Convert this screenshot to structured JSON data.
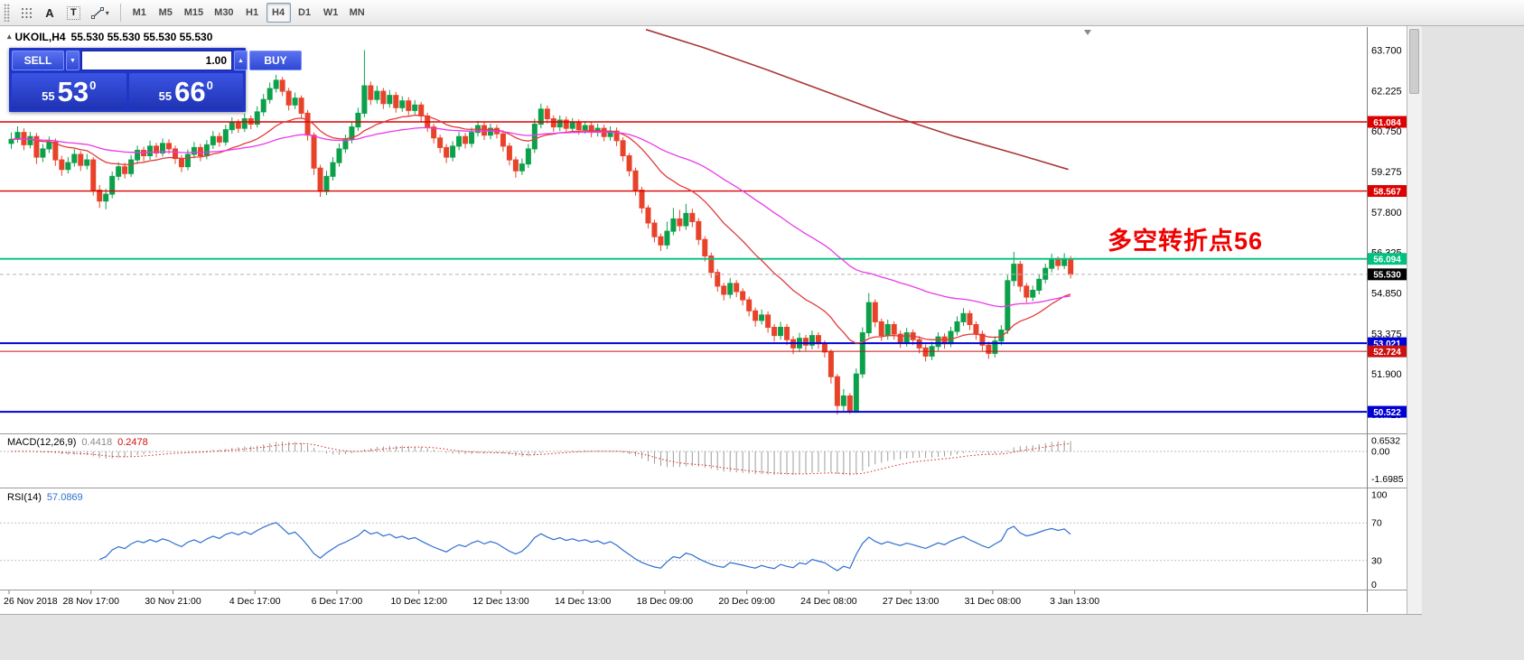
{
  "icons": {
    "caret_down": "▾",
    "spin_up": "▲",
    "spin_down": "▼",
    "collapse_arrow": "▴"
  },
  "app": {
    "toolbar": {
      "tools": [
        {
          "name": "grid-snap-tool"
        },
        {
          "name": "text-tool",
          "label": "A"
        },
        {
          "name": "textbox-tool",
          "label": "T"
        },
        {
          "name": "draw-tools"
        }
      ],
      "timeframes": [
        {
          "label": "M1"
        },
        {
          "label": "M5"
        },
        {
          "label": "M15"
        },
        {
          "label": "M30"
        },
        {
          "label": "H1"
        },
        {
          "label": "H4",
          "active": true
        },
        {
          "label": "D1"
        },
        {
          "label": "W1"
        },
        {
          "label": "MN"
        }
      ]
    }
  },
  "chart": {
    "symbol": "UKOIL,H4",
    "ohlc_line": "55.530 55.530 55.530 55.530",
    "trade_panel": {
      "sell_label": "SELL",
      "buy_label": "BUY",
      "volume": "1.00",
      "sell_price": {
        "prefix": "55",
        "big": "53",
        "sup": "0"
      },
      "buy_price": {
        "prefix": "55",
        "big": "66",
        "sup": "0"
      }
    },
    "annotation": {
      "text": "多空转折点56",
      "color": "#f10000"
    }
  },
  "price_axis": {
    "ticks": [
      "63.700",
      "62.225",
      "60.750",
      "59.275",
      "57.800",
      "56.325",
      "54.850",
      "53.375",
      "51.900",
      "50.425"
    ],
    "levels": [
      {
        "price": 61.084,
        "label": "61.084",
        "color": "#dd0000",
        "width": 1.4
      },
      {
        "price": 58.567,
        "label": "58.567",
        "color": "#dd0000",
        "width": 1.4
      },
      {
        "price": 56.094,
        "label": "56.094",
        "color": "#00c17e",
        "width": 1.8
      },
      {
        "price": 55.53,
        "label": "55.530",
        "color": "#b4b4b4",
        "badge": "#000000",
        "width": 1,
        "dash": "4,3",
        "is_current": true
      },
      {
        "price": 53.021,
        "label": "53.021",
        "color": "#0000d4",
        "width": 2
      },
      {
        "price": 52.724,
        "label": "52.724",
        "color": "#cc1111",
        "width": 1
      },
      {
        "price": 50.522,
        "label": "50.522",
        "color": "#0000d4",
        "width": 2
      }
    ]
  },
  "macd_panel": {
    "name": "MACD(12,26,9)",
    "value_main": "0.4418",
    "value_signal": "0.2478",
    "axis": [
      "0.6532",
      "0.00",
      "-1.6985"
    ]
  },
  "rsi_panel": {
    "name": "RSI(14)",
    "value": "57.0869",
    "axis": [
      "100",
      "70",
      "30",
      "0"
    ],
    "guide_levels": [
      70,
      30
    ]
  },
  "chart_data": {
    "type": "candlestick",
    "symbol": "UKOIL",
    "timeframe": "H4",
    "up_color": "#0ca04a",
    "down_color": "#e8432a",
    "time_labels": [
      "26 Nov 2018",
      "28 Nov 17:00",
      "30 Nov 21:00",
      "4 Dec 17:00",
      "6 Dec 17:00",
      "10 Dec 12:00",
      "12 Dec 13:00",
      "14 Dec 13:00",
      "18 Dec 09:00",
      "20 Dec 09:00",
      "24 Dec 08:00",
      "27 Dec 13:00",
      "31 Dec 08:00",
      "3 Jan 13:00"
    ],
    "candles_per_label": 13,
    "ohlc_format": [
      "open",
      "high",
      "low",
      "close"
    ],
    "candles": [
      [
        60.3,
        60.7,
        60.1,
        60.45
      ],
      [
        60.45,
        60.92,
        60.33,
        60.7
      ],
      [
        60.7,
        60.85,
        60.05,
        60.25
      ],
      [
        60.25,
        60.72,
        60.12,
        60.55
      ],
      [
        60.55,
        60.68,
        59.55,
        59.8
      ],
      [
        59.8,
        60.28,
        59.62,
        60.1
      ],
      [
        60.1,
        60.55,
        59.95,
        60.35
      ],
      [
        60.35,
        60.48,
        59.48,
        59.7
      ],
      [
        59.7,
        59.85,
        59.12,
        59.35
      ],
      [
        59.35,
        59.8,
        59.2,
        59.6
      ],
      [
        59.6,
        60.1,
        59.45,
        59.9
      ],
      [
        59.9,
        60.02,
        59.3,
        59.5
      ],
      [
        59.5,
        59.92,
        59.35,
        59.7
      ],
      [
        59.7,
        59.8,
        58.4,
        58.6
      ],
      [
        58.6,
        58.78,
        57.95,
        58.2
      ],
      [
        58.2,
        58.65,
        57.9,
        58.45
      ],
      [
        58.45,
        59.28,
        58.3,
        59.1
      ],
      [
        59.1,
        59.62,
        58.95,
        59.45
      ],
      [
        59.45,
        59.6,
        59.02,
        59.2
      ],
      [
        59.2,
        59.88,
        59.08,
        59.7
      ],
      [
        59.7,
        60.22,
        59.55,
        60.05
      ],
      [
        60.05,
        60.18,
        59.65,
        59.85
      ],
      [
        59.85,
        60.4,
        59.7,
        60.2
      ],
      [
        60.2,
        60.32,
        59.78,
        59.95
      ],
      [
        59.95,
        60.48,
        59.82,
        60.3
      ],
      [
        60.3,
        60.45,
        59.92,
        60.1
      ],
      [
        60.1,
        60.22,
        59.55,
        59.75
      ],
      [
        59.75,
        59.88,
        59.25,
        59.45
      ],
      [
        59.45,
        60.08,
        59.32,
        59.9
      ],
      [
        59.9,
        60.35,
        59.75,
        60.15
      ],
      [
        60.15,
        60.28,
        59.65,
        59.85
      ],
      [
        59.85,
        60.42,
        59.72,
        60.25
      ],
      [
        60.25,
        60.75,
        60.1,
        60.55
      ],
      [
        60.55,
        60.7,
        60.18,
        60.35
      ],
      [
        60.35,
        60.98,
        60.22,
        60.8
      ],
      [
        60.8,
        61.25,
        60.65,
        61.05
      ],
      [
        61.05,
        61.18,
        60.68,
        60.85
      ],
      [
        60.85,
        61.4,
        60.72,
        61.2
      ],
      [
        61.2,
        61.32,
        60.82,
        61.0
      ],
      [
        61.0,
        61.65,
        60.88,
        61.45
      ],
      [
        61.45,
        62.1,
        61.3,
        61.9
      ],
      [
        61.9,
        62.52,
        61.75,
        62.3
      ],
      [
        62.3,
        62.8,
        62.15,
        62.6
      ],
      [
        62.6,
        62.72,
        62.02,
        62.2
      ],
      [
        62.2,
        62.32,
        61.5,
        61.7
      ],
      [
        61.7,
        62.15,
        61.55,
        61.95
      ],
      [
        61.95,
        62.05,
        61.2,
        61.4
      ],
      [
        61.4,
        61.52,
        60.4,
        60.6
      ],
      [
        60.6,
        60.7,
        59.15,
        59.4
      ],
      [
        59.4,
        59.52,
        58.35,
        58.55
      ],
      [
        58.55,
        59.3,
        58.42,
        59.1
      ],
      [
        59.1,
        59.8,
        58.95,
        59.6
      ],
      [
        59.6,
        60.3,
        59.45,
        60.1
      ],
      [
        60.1,
        60.62,
        59.95,
        60.45
      ],
      [
        60.45,
        61.1,
        60.3,
        60.9
      ],
      [
        60.9,
        61.6,
        60.75,
        61.4
      ],
      [
        61.4,
        63.7,
        61.25,
        62.4
      ],
      [
        62.4,
        62.55,
        61.7,
        61.9
      ],
      [
        61.9,
        62.4,
        61.75,
        62.2
      ],
      [
        62.2,
        62.32,
        61.55,
        61.75
      ],
      [
        61.75,
        62.25,
        61.6,
        62.05
      ],
      [
        62.05,
        62.18,
        61.42,
        61.6
      ],
      [
        61.6,
        62.02,
        61.45,
        61.85
      ],
      [
        61.85,
        61.98,
        61.32,
        61.5
      ],
      [
        61.5,
        61.88,
        61.35,
        61.7
      ],
      [
        61.7,
        61.82,
        61.1,
        61.3
      ],
      [
        61.3,
        61.42,
        60.72,
        60.9
      ],
      [
        60.9,
        61.02,
        60.3,
        60.5
      ],
      [
        60.5,
        60.62,
        59.95,
        60.15
      ],
      [
        60.15,
        60.28,
        59.58,
        59.8
      ],
      [
        59.8,
        60.38,
        59.65,
        60.2
      ],
      [
        60.2,
        60.72,
        60.05,
        60.55
      ],
      [
        60.55,
        60.68,
        60.12,
        60.3
      ],
      [
        60.3,
        60.88,
        60.15,
        60.7
      ],
      [
        60.7,
        61.12,
        60.55,
        60.95
      ],
      [
        60.95,
        61.08,
        60.42,
        60.6
      ],
      [
        60.6,
        61.02,
        60.45,
        60.85
      ],
      [
        60.85,
        60.98,
        60.48,
        60.65
      ],
      [
        60.65,
        60.78,
        60.0,
        60.2
      ],
      [
        60.2,
        60.32,
        59.5,
        59.7
      ],
      [
        59.7,
        59.82,
        59.05,
        59.3
      ],
      [
        59.3,
        59.75,
        59.15,
        59.55
      ],
      [
        59.55,
        60.28,
        59.4,
        60.1
      ],
      [
        60.1,
        61.2,
        59.95,
        61.0
      ],
      [
        61.0,
        61.75,
        60.85,
        61.55
      ],
      [
        61.55,
        61.68,
        61.02,
        61.2
      ],
      [
        61.2,
        61.32,
        60.72,
        60.9
      ],
      [
        60.9,
        61.32,
        60.75,
        61.15
      ],
      [
        61.15,
        61.28,
        60.68,
        60.85
      ],
      [
        60.85,
        61.22,
        60.7,
        61.05
      ],
      [
        61.05,
        61.18,
        60.62,
        60.8
      ],
      [
        60.8,
        61.12,
        60.65,
        60.95
      ],
      [
        60.95,
        61.08,
        60.52,
        60.7
      ],
      [
        60.7,
        61.02,
        60.55,
        60.85
      ],
      [
        60.85,
        60.98,
        60.38,
        60.55
      ],
      [
        60.55,
        60.92,
        60.4,
        60.75
      ],
      [
        60.75,
        60.88,
        60.2,
        60.4
      ],
      [
        60.4,
        60.52,
        59.65,
        59.85
      ],
      [
        59.85,
        59.95,
        59.1,
        59.3
      ],
      [
        59.3,
        59.42,
        58.4,
        58.6
      ],
      [
        58.6,
        58.72,
        57.75,
        57.95
      ],
      [
        57.95,
        58.05,
        57.2,
        57.4
      ],
      [
        57.4,
        57.52,
        56.7,
        56.9
      ],
      [
        56.9,
        57.02,
        56.38,
        56.6
      ],
      [
        56.6,
        57.45,
        56.45,
        57.1
      ],
      [
        57.1,
        57.95,
        56.95,
        57.55
      ],
      [
        57.55,
        57.88,
        57.1,
        57.3
      ],
      [
        57.3,
        58.1,
        57.15,
        57.75
      ],
      [
        57.75,
        57.92,
        57.25,
        57.45
      ],
      [
        57.45,
        57.58,
        56.6,
        56.8
      ],
      [
        56.8,
        56.92,
        56.0,
        56.2
      ],
      [
        56.2,
        56.32,
        55.4,
        55.6
      ],
      [
        55.6,
        55.72,
        54.9,
        55.1
      ],
      [
        55.1,
        55.22,
        54.58,
        54.8
      ],
      [
        54.8,
        55.4,
        54.65,
        55.2
      ],
      [
        55.2,
        55.32,
        54.7,
        54.9
      ],
      [
        54.9,
        55.02,
        54.4,
        54.6
      ],
      [
        54.6,
        54.72,
        54.0,
        54.2
      ],
      [
        54.2,
        54.32,
        53.62,
        53.85
      ],
      [
        53.85,
        54.25,
        53.7,
        54.05
      ],
      [
        54.05,
        54.18,
        53.4,
        53.6
      ],
      [
        53.6,
        53.72,
        53.08,
        53.3
      ],
      [
        53.3,
        53.8,
        53.15,
        53.6
      ],
      [
        53.6,
        53.72,
        52.95,
        53.15
      ],
      [
        53.15,
        53.28,
        52.62,
        52.85
      ],
      [
        52.85,
        53.4,
        52.7,
        53.2
      ],
      [
        53.2,
        53.32,
        52.75,
        52.95
      ],
      [
        52.95,
        53.48,
        52.8,
        53.3
      ],
      [
        53.3,
        53.42,
        52.82,
        53.0
      ],
      [
        53.0,
        53.12,
        52.5,
        52.7
      ],
      [
        52.7,
        52.8,
        51.55,
        51.8
      ],
      [
        51.8,
        51.9,
        50.42,
        50.75
      ],
      [
        50.75,
        51.35,
        50.55,
        51.1
      ],
      [
        51.1,
        51.2,
        50.45,
        50.55
      ],
      [
        50.55,
        52.1,
        50.48,
        51.9
      ],
      [
        51.9,
        53.6,
        51.75,
        53.4
      ],
      [
        53.4,
        54.85,
        53.25,
        54.5
      ],
      [
        54.5,
        54.62,
        53.6,
        53.8
      ],
      [
        53.8,
        53.92,
        53.1,
        53.3
      ],
      [
        53.3,
        53.88,
        53.15,
        53.7
      ],
      [
        53.7,
        53.82,
        53.15,
        53.35
      ],
      [
        53.35,
        53.48,
        52.85,
        53.05
      ],
      [
        53.05,
        53.58,
        52.9,
        53.4
      ],
      [
        53.4,
        53.52,
        52.95,
        53.15
      ],
      [
        53.15,
        53.28,
        52.65,
        52.85
      ],
      [
        52.85,
        52.98,
        52.35,
        52.55
      ],
      [
        52.55,
        53.08,
        52.4,
        52.9
      ],
      [
        52.9,
        53.42,
        52.75,
        53.25
      ],
      [
        53.25,
        53.38,
        52.82,
        53.0
      ],
      [
        53.0,
        53.62,
        52.88,
        53.45
      ],
      [
        53.45,
        54.0,
        53.3,
        53.8
      ],
      [
        53.8,
        54.3,
        53.65,
        54.1
      ],
      [
        54.1,
        54.22,
        53.5,
        53.7
      ],
      [
        53.7,
        53.82,
        53.15,
        53.35
      ],
      [
        53.35,
        53.48,
        52.75,
        52.95
      ],
      [
        52.95,
        53.08,
        52.45,
        52.65
      ],
      [
        52.65,
        53.28,
        52.5,
        53.1
      ],
      [
        53.1,
        53.68,
        52.95,
        53.5
      ],
      [
        53.5,
        55.5,
        53.35,
        55.3
      ],
      [
        55.3,
        56.35,
        55.1,
        55.9
      ],
      [
        55.9,
        56.02,
        54.9,
        55.1
      ],
      [
        55.1,
        55.22,
        54.5,
        54.7
      ],
      [
        54.7,
        55.12,
        54.55,
        54.95
      ],
      [
        54.95,
        55.52,
        54.8,
        55.35
      ],
      [
        55.35,
        55.92,
        55.2,
        55.75
      ],
      [
        55.75,
        56.28,
        55.6,
        56.05
      ],
      [
        56.05,
        56.18,
        55.68,
        55.85
      ],
      [
        55.85,
        56.3,
        55.72,
        56.1
      ],
      [
        56.1,
        56.2,
        55.38,
        55.53
      ]
    ],
    "moving_averages": [
      {
        "name": "fast-ma",
        "type": "ema",
        "period": 20,
        "color": "#e23b3b"
      },
      {
        "name": "slow-ma",
        "type": "ema",
        "period": 55,
        "color": "#e93ae9"
      }
    ],
    "long_ma": {
      "color": "#a83838",
      "points": [
        [
          101,
          64.45
        ],
        [
          110,
          63.8
        ],
        [
          120,
          63.0
        ],
        [
          130,
          62.15
        ],
        [
          140,
          61.3
        ],
        [
          150,
          60.55
        ],
        [
          160,
          59.9
        ],
        [
          168,
          59.35
        ]
      ]
    },
    "indicators": {
      "macd": {
        "fast": 12,
        "slow": 26,
        "signal": 9,
        "histogram_color": "#9c9c9c",
        "signal_color": "#e02020"
      },
      "rsi": {
        "period": 14,
        "color": "#2e6fd0"
      }
    }
  }
}
